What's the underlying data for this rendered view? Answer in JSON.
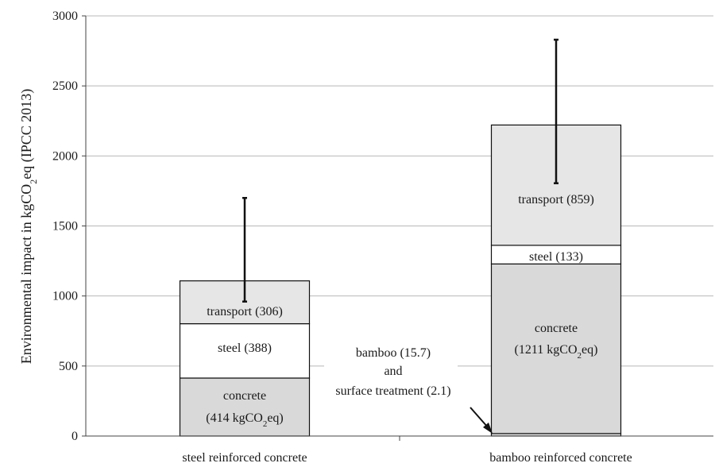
{
  "chart_data": {
    "type": "bar",
    "stacked": true,
    "ylabel": "Environmental impact in kgCO₂eq (IPCC 2013)",
    "ylim": [
      0,
      3000
    ],
    "yticks": [
      0,
      500,
      1000,
      1500,
      2000,
      2500,
      3000
    ],
    "grid": "horizontal",
    "categories": [
      "steel reinforced concrete",
      "bamboo reinforced concrete"
    ],
    "series": [
      {
        "name": "bamboo and surface treatment",
        "values": [
          0,
          17.8
        ],
        "color": "#d9d9d9"
      },
      {
        "name": "concrete",
        "values": [
          414,
          1211
        ],
        "color": "#d9d9d9"
      },
      {
        "name": "steel",
        "values": [
          388,
          133
        ],
        "color": "#ffffff"
      },
      {
        "name": "transport",
        "values": [
          306,
          859
        ],
        "color": "#e6e6e6"
      }
    ],
    "error_bars": [
      {
        "category": "steel reinforced concrete",
        "low": 960,
        "high": 1700
      },
      {
        "category": "bamboo reinforced concrete",
        "low": 1805,
        "high": 2830
      }
    ],
    "segment_labels": {
      "steel_concrete_l1": "concrete",
      "steel_concrete_l2_main": "(414 kgCO",
      "steel_concrete_l2_sub": "2",
      "steel_concrete_l2_end": "eq)",
      "steel_steel": "steel (388)",
      "steel_transport": "transport (306)",
      "bamboo_concrete_l1": "concrete",
      "bamboo_concrete_l2_main": "(1211 kgCO",
      "bamboo_concrete_l2_sub": "2",
      "bamboo_concrete_l2_end": "eq)",
      "bamboo_steel": "steel (133)",
      "bamboo_transport": "transport (859)"
    },
    "annotation": {
      "line1": "bamboo (15.7)",
      "line2": "and",
      "line3": "surface treatment (2.1)"
    },
    "ylabel_parts": {
      "main": "Environmental impact in kgCO",
      "sub": "2",
      "end": "eq (IPCC 2013)"
    }
  }
}
